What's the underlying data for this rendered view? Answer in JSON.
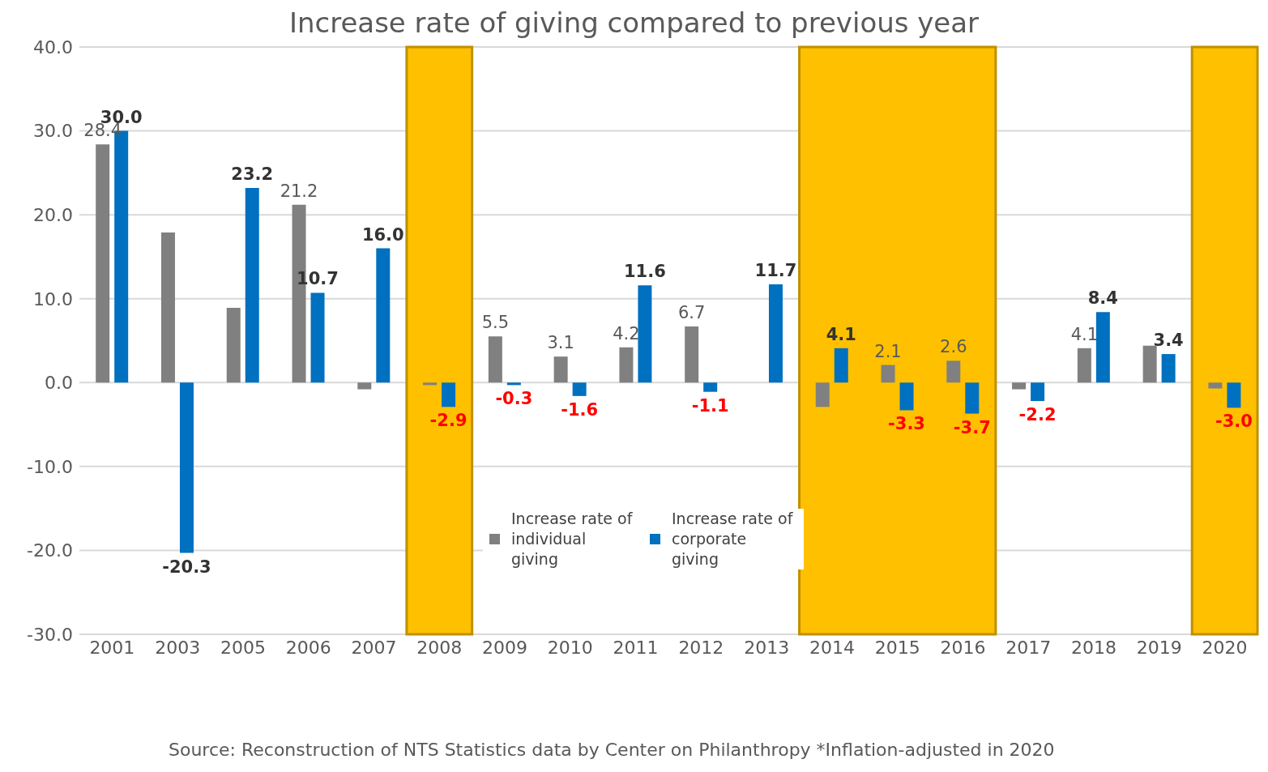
{
  "chart_data": {
    "type": "bar",
    "title": "Increase rate of giving compared to previous year",
    "categories": [
      "2001",
      "2003",
      "2005",
      "2006",
      "2007",
      "2008",
      "2009",
      "2010",
      "2011",
      "2012",
      "2013",
      "2014",
      "2015",
      "2016",
      "2017",
      "2018",
      "2019",
      "2020"
    ],
    "series": [
      {
        "name": "Increase rate of individual giving",
        "color": "#808080",
        "values": [
          28.4,
          17.9,
          8.9,
          21.2,
          -0.8,
          -0.3,
          5.5,
          3.1,
          4.2,
          6.7,
          null,
          -2.9,
          2.1,
          2.6,
          -0.8,
          4.1,
          4.4,
          -0.7
        ],
        "value_labels": [
          "28.4",
          null,
          null,
          "21.2",
          null,
          null,
          "5.5",
          "3.1",
          "4.2",
          "6.7",
          null,
          null,
          "2.1",
          "2.6",
          null,
          "4.1",
          null,
          null
        ]
      },
      {
        "name": "Increase rate of corporate giving",
        "color": "#0070c0",
        "values": [
          30.0,
          -20.3,
          23.2,
          10.7,
          16.0,
          -2.9,
          -0.3,
          -1.6,
          11.6,
          -1.1,
          11.7,
          4.1,
          -3.3,
          -3.7,
          -2.2,
          8.4,
          3.4,
          -3.0
        ],
        "value_labels": [
          "30.0",
          "-20.3",
          "23.2",
          "10.7",
          "16.0",
          "-2.9",
          "-0.3",
          "-1.6",
          "11.6",
          "-1.1",
          "11.7",
          "4.1",
          "-3.3",
          "-3.7",
          "-2.2",
          "8.4",
          "3.4",
          "-3.0"
        ]
      }
    ],
    "ylim": [
      -30,
      40
    ],
    "yticks": [
      {
        "value": -30,
        "label": "-30.0"
      },
      {
        "value": -20,
        "label": "-20.0"
      },
      {
        "value": -10,
        "label": "-10.0"
      },
      {
        "value": 0,
        "label": "0.0"
      },
      {
        "value": 10,
        "label": "10.0"
      },
      {
        "value": 20,
        "label": "20.0"
      },
      {
        "value": 30,
        "label": "30.0"
      },
      {
        "value": 40,
        "label": "40.0"
      }
    ],
    "grid": "y",
    "legend": "bottom",
    "bands": [
      {
        "axis": "x",
        "from": "2008",
        "to": "2008",
        "color": "#ffc000"
      },
      {
        "axis": "x",
        "from": "2014",
        "to": "2016",
        "color": "#ffc000"
      },
      {
        "axis": "x",
        "from": "2020",
        "to": "2020",
        "color": "#ffc000"
      }
    ],
    "annotations": [
      "Source: Reconstruction of NTS Statistics data by Center on Philanthropy *Inflation-adjusted in 2020"
    ]
  }
}
